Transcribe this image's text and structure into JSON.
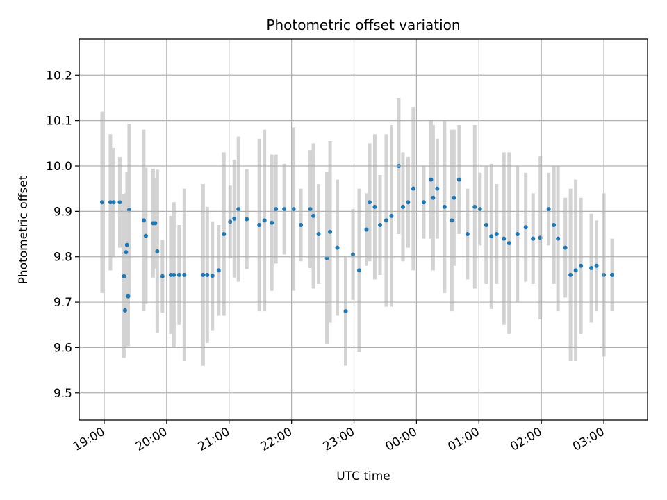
{
  "chart_data": {
    "type": "scatter",
    "title": "Photometric offset variation",
    "xlabel": "UTC time",
    "ylabel": "Photometric offset",
    "x_ticks": [
      "19:00",
      "20:00",
      "21:00",
      "22:00",
      "23:00",
      "00:00",
      "01:00",
      "02:00",
      "03:00"
    ],
    "y_ticks": [
      "9.5",
      "9.6",
      "9.7",
      "9.8",
      "9.9",
      "10.0",
      "10.1",
      "10.2"
    ],
    "xlim": [
      "18:36",
      "03:42"
    ],
    "ylim": [
      9.44,
      10.28
    ],
    "grid": true,
    "marker_color": "#1f77b4",
    "errorbar_color": "#d3d3d3",
    "series": [
      {
        "x": [
          "18:58",
          "19:06",
          "19:09",
          "19:15",
          "19:19",
          "19:20",
          "19:21",
          "19:22",
          "19:23",
          "19:24",
          "19:38",
          "19:40",
          "19:47",
          "19:49",
          "19:51",
          "19:56",
          "20:04",
          "20:07",
          "20:12",
          "20:17",
          "20:35",
          "20:39",
          "20:44",
          "20:50",
          "20:55",
          "21:01",
          "21:05",
          "21:09",
          "21:17",
          "21:29",
          "21:34",
          "21:41",
          "21:45",
          "21:53",
          "22:02",
          "22:09",
          "22:18",
          "22:21",
          "22:26",
          "22:34",
          "22:37",
          "22:44",
          "22:52",
          "22:59",
          "23:05",
          "23:12",
          "23:15",
          "23:20",
          "23:25",
          "23:31",
          "23:36",
          "23:43",
          "23:47",
          "23:52",
          "23:57",
          "00:07",
          "00:14",
          "00:16",
          "00:20",
          "00:27",
          "00:34",
          "00:36",
          "00:41",
          "00:49",
          "00:56",
          "01:01",
          "01:07",
          "01:12",
          "01:17",
          "01:24",
          "01:29",
          "01:37",
          "01:45",
          "01:52",
          "01:59",
          "02:07",
          "02:12",
          "02:16",
          "02:23",
          "02:28",
          "02:33",
          "02:38",
          "02:48",
          "02:53",
          "03:00",
          "03:08"
        ],
        "y": [
          9.92,
          9.92,
          9.92,
          9.92,
          9.757,
          9.682,
          9.81,
          9.826,
          9.713,
          9.903,
          9.88,
          9.846,
          9.874,
          9.874,
          9.812,
          9.757,
          9.76,
          9.76,
          9.76,
          9.76,
          9.76,
          9.76,
          9.758,
          9.77,
          9.85,
          9.877,
          9.884,
          9.905,
          9.883,
          9.87,
          9.88,
          9.875,
          9.905,
          9.905,
          9.905,
          9.87,
          9.905,
          9.89,
          9.85,
          9.797,
          9.855,
          9.82,
          9.68,
          9.805,
          9.77,
          9.86,
          9.92,
          9.91,
          9.87,
          9.88,
          9.89,
          10.0,
          9.91,
          9.92,
          9.95,
          9.92,
          9.97,
          9.93,
          9.95,
          9.91,
          9.88,
          9.93,
          9.97,
          9.85,
          9.91,
          9.905,
          9.87,
          9.845,
          9.85,
          9.84,
          9.83,
          9.85,
          9.865,
          9.84,
          9.842,
          9.905,
          9.87,
          9.84,
          9.82,
          9.76,
          9.77,
          9.78,
          9.775,
          9.78,
          9.76,
          9.76
        ]
      }
    ]
  }
}
